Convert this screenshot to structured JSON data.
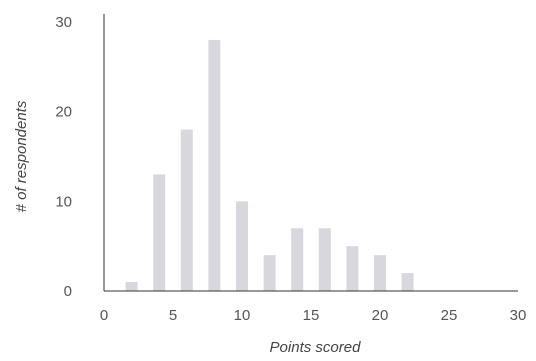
{
  "chart_data": {
    "type": "bar",
    "xlabel": "Points scored",
    "ylabel": "# of respondents",
    "xlim": [
      0,
      30
    ],
    "ylim": [
      0,
      30
    ],
    "x_ticks": [
      0,
      5,
      10,
      15,
      20,
      25,
      30
    ],
    "y_ticks": [
      0,
      10,
      20,
      30
    ],
    "x": [
      2,
      4,
      6,
      8,
      10,
      12,
      14,
      16,
      18,
      20,
      22
    ],
    "values": [
      1,
      13,
      18,
      28,
      10,
      4,
      7,
      7,
      5,
      4,
      2
    ],
    "grid": false,
    "bar_color": "#d9d7de",
    "axis_color": "#333333"
  }
}
